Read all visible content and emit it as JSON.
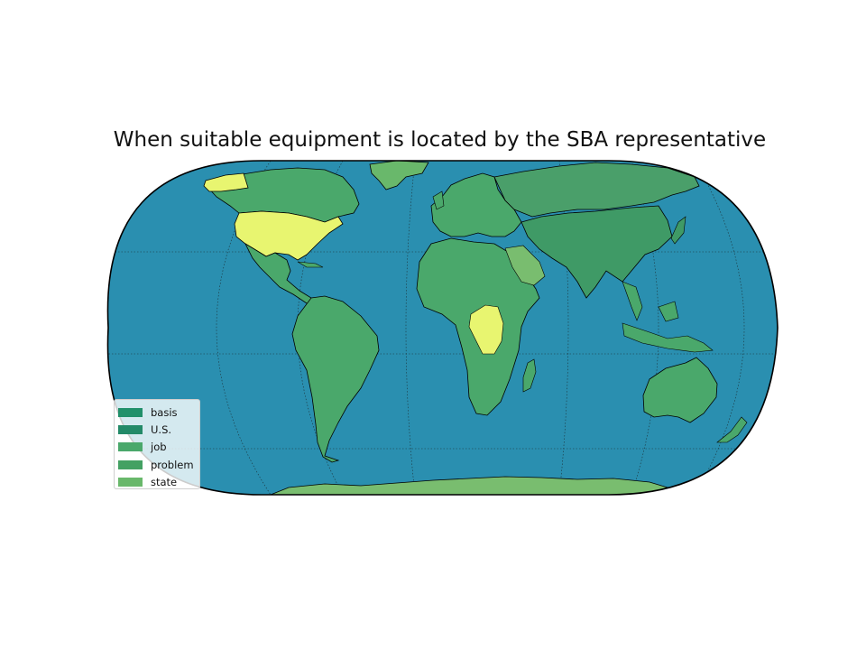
{
  "map": {
    "title": "When suitable equipment is located by the SBA representative",
    "projection": "Robinson",
    "ocean_color": "#2a8fb0",
    "border_color": "#000000",
    "highlight_color": "#e8f570",
    "legend": [
      {
        "label": "basis",
        "color": "#21906a"
      },
      {
        "label": "U.S.",
        "color": "#238a68"
      },
      {
        "label": "job",
        "color": "#4aa86b"
      },
      {
        "label": "problem",
        "color": "#44a163"
      },
      {
        "label": "state",
        "color": "#69b86b"
      }
    ],
    "land_colors": {
      "americas": "#4aa86b",
      "usa": "#e8f570",
      "europe_africa": "#4aa86b",
      "asia": "#3f9a66",
      "russia": "#4a9f6a",
      "australia": "#4aa86b",
      "antarctica": "#79bd6f",
      "greenland": "#69b86b"
    }
  }
}
